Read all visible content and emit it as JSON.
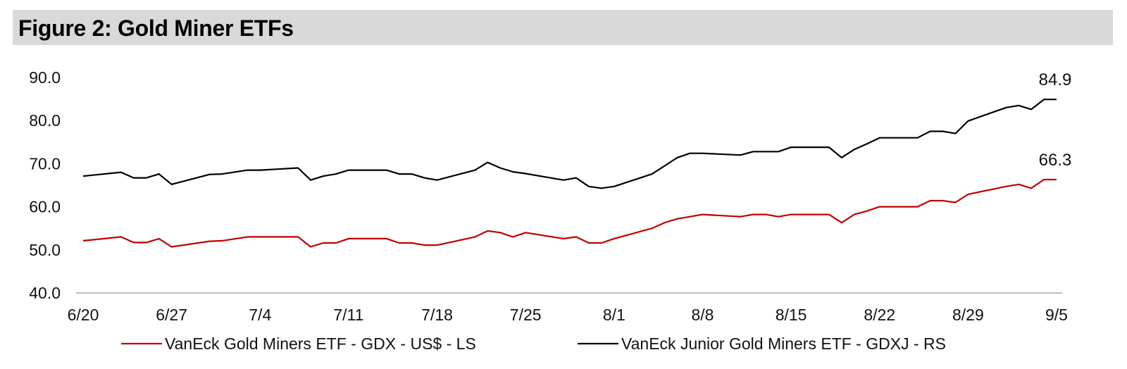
{
  "title": "Figure 2: Gold Miner ETFs",
  "chart_data": {
    "type": "line",
    "ylim": [
      40.0,
      90.0
    ],
    "yticks": [
      "40.0",
      "50.0",
      "60.0",
      "70.0",
      "80.0",
      "90.0"
    ],
    "xticks": [
      {
        "day": 0,
        "label": "6/20"
      },
      {
        "day": 7,
        "label": "6/27"
      },
      {
        "day": 14,
        "label": "7/4"
      },
      {
        "day": 21,
        "label": "7/11"
      },
      {
        "day": 28,
        "label": "7/18"
      },
      {
        "day": 35,
        "label": "7/25"
      },
      {
        "day": 42,
        "label": "8/1"
      },
      {
        "day": 49,
        "label": "8/8"
      },
      {
        "day": 56,
        "label": "8/15"
      },
      {
        "day": 63,
        "label": "8/22"
      },
      {
        "day": 70,
        "label": "8/29"
      },
      {
        "day": 77,
        "label": "9/5"
      }
    ],
    "x": [
      0,
      3,
      4,
      5,
      6,
      7,
      10,
      11,
      13,
      14,
      17,
      18,
      19,
      20,
      21,
      24,
      25,
      26,
      27,
      28,
      31,
      32,
      33,
      34,
      35,
      38,
      39,
      40,
      41,
      42,
      45,
      46,
      47,
      48,
      49,
      52,
      53,
      54,
      55,
      56,
      59,
      60,
      61,
      62,
      63,
      66,
      67,
      68,
      69,
      70,
      73,
      74,
      75,
      76,
      77
    ],
    "series": [
      {
        "name": "VanEck Gold Miners ETF  - GDX  - US$ - LS",
        "color": "#c00000",
        "values": [
          52.1,
          53.0,
          51.7,
          51.7,
          52.6,
          50.7,
          52.0,
          52.1,
          53.0,
          53.0,
          53.0,
          50.7,
          51.6,
          51.6,
          52.6,
          52.6,
          51.6,
          51.6,
          51.1,
          51.1,
          53.0,
          54.4,
          54.0,
          53.0,
          54.0,
          52.6,
          53.0,
          51.6,
          51.6,
          52.6,
          55.0,
          56.3,
          57.2,
          57.7,
          58.2,
          57.7,
          58.2,
          58.2,
          57.7,
          58.2,
          58.2,
          56.3,
          58.2,
          59.0,
          60.0,
          60.0,
          61.4,
          61.4,
          61.0,
          62.9,
          64.7,
          65.2,
          64.3,
          66.3,
          66.3
        ]
      },
      {
        "name": "VanEck Junior Gold Miners ETF - GDXJ - RS",
        "color": "#000000",
        "values": [
          67.1,
          68.0,
          66.7,
          66.7,
          67.6,
          65.2,
          67.5,
          67.6,
          68.5,
          68.5,
          69.0,
          66.2,
          67.1,
          67.6,
          68.5,
          68.5,
          67.6,
          67.6,
          66.7,
          66.2,
          68.5,
          70.3,
          69.0,
          68.1,
          67.7,
          66.2,
          66.7,
          64.7,
          64.3,
          64.7,
          67.6,
          69.5,
          71.4,
          72.4,
          72.4,
          72.0,
          72.8,
          72.8,
          72.8,
          73.8,
          73.8,
          71.4,
          73.3,
          74.6,
          76.0,
          76.0,
          77.5,
          77.5,
          77.0,
          79.9,
          83.0,
          83.5,
          82.6,
          84.9,
          84.9
        ]
      }
    ],
    "end_labels": [
      "84.9",
      "66.3"
    ],
    "legend": {
      "position": "bottom",
      "items": [
        "VanEck Gold Miners ETF  - GDX  - US$ - LS",
        "VanEck Junior Gold Miners ETF - GDXJ - RS"
      ]
    },
    "grid": false
  }
}
